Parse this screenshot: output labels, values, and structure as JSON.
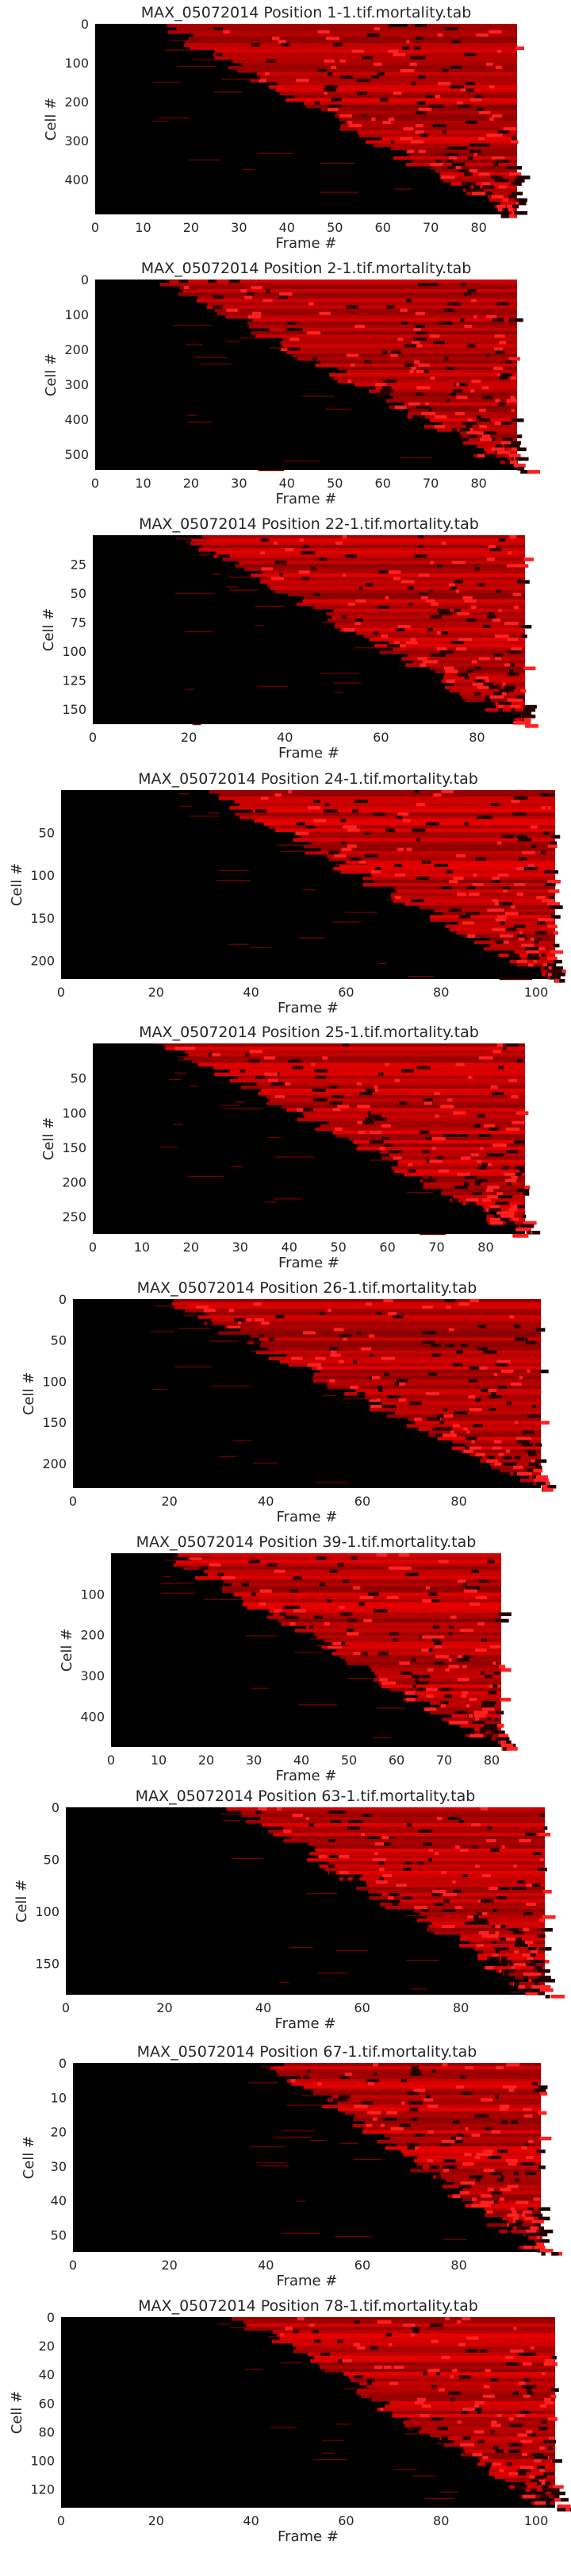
{
  "colors": {
    "background": "#000000",
    "signal": "#ff0000",
    "text": "#262626"
  },
  "chart_data": [
    {
      "type": "heatmap",
      "title": "MAX_05072014 Position 1-1.tif.mortality.tab",
      "xlabel": "Frame #",
      "ylabel": "Cell #",
      "xlim": [
        0,
        88
      ],
      "ylim": [
        0,
        490
      ],
      "x_ticks": [
        0,
        10,
        20,
        30,
        40,
        50,
        60,
        70,
        80
      ],
      "y_ticks": [
        0,
        100,
        200,
        300,
        400
      ],
      "onset_start_frame": 14,
      "onset_end_frame": 87,
      "description": "Cells sorted by death onset; red marks dead/signal frames"
    },
    {
      "type": "heatmap",
      "title": "MAX_05072014 Position 2-1.tif.mortality.tab",
      "xlabel": "Frame #",
      "ylabel": "Cell #",
      "xlim": [
        0,
        88
      ],
      "ylim": [
        0,
        545
      ],
      "x_ticks": [
        0,
        10,
        20,
        30,
        40,
        50,
        60,
        70,
        80
      ],
      "y_ticks": [
        0,
        100,
        200,
        300,
        400,
        500
      ],
      "onset_start_frame": 15,
      "onset_end_frame": 88,
      "description": "Cells sorted by death onset; red marks dead/signal frames"
    },
    {
      "type": "heatmap",
      "title": "MAX_05072014 Position 22-1.tif.mortality.tab",
      "xlabel": "Frame #",
      "ylabel": "Cell #",
      "xlim": [
        0,
        90
      ],
      "ylim": [
        0,
        163
      ],
      "x_ticks": [
        0,
        20,
        40,
        60,
        80
      ],
      "y_ticks": [
        25,
        50,
        75,
        100,
        125,
        150
      ],
      "onset_start_frame": 20,
      "onset_end_frame": 90,
      "description": "Cells sorted by death onset; red marks dead/signal frames"
    },
    {
      "type": "heatmap",
      "title": "MAX_05072014 Position 24-1.tif.mortality.tab",
      "xlabel": "Frame #",
      "ylabel": "Cell #",
      "xlim": [
        0,
        104
      ],
      "ylim": [
        0,
        222
      ],
      "x_ticks": [
        0,
        20,
        40,
        60,
        80,
        100
      ],
      "y_ticks": [
        50,
        100,
        150,
        200
      ],
      "onset_start_frame": 30,
      "onset_end_frame": 104,
      "description": "Cells sorted by death onset; red marks dead/signal frames"
    },
    {
      "type": "heatmap",
      "title": "MAX_05072014 Position 25-1.tif.mortality.tab",
      "xlabel": "Frame #",
      "ylabel": "Cell #",
      "xlim": [
        0,
        88
      ],
      "ylim": [
        0,
        275
      ],
      "x_ticks": [
        0,
        10,
        20,
        30,
        40,
        50,
        60,
        70,
        80
      ],
      "y_ticks": [
        50,
        100,
        150,
        200,
        250
      ],
      "onset_start_frame": 16,
      "onset_end_frame": 88,
      "description": "Cells sorted by death onset; red marks dead/signal frames"
    },
    {
      "type": "heatmap",
      "title": "MAX_05072014 Position 26-1.tif.mortality.tab",
      "xlabel": "Frame #",
      "ylabel": "Cell #",
      "xlim": [
        0,
        97
      ],
      "ylim": [
        0,
        230
      ],
      "x_ticks": [
        0,
        20,
        40,
        60,
        80
      ],
      "y_ticks": [
        0,
        50,
        100,
        150,
        200
      ],
      "onset_start_frame": 20,
      "onset_end_frame": 97,
      "description": "Cells sorted by death onset; red marks dead/signal frames"
    },
    {
      "type": "heatmap",
      "title": "MAX_05072014 Position 39-1.tif.mortality.tab",
      "xlabel": "Frame #",
      "ylabel": "Cell #",
      "xlim": [
        0,
        82
      ],
      "ylim": [
        0,
        475
      ],
      "x_ticks": [
        0,
        10,
        20,
        30,
        40,
        50,
        60,
        70,
        80
      ],
      "y_ticks": [
        100,
        200,
        300,
        400
      ],
      "onset_start_frame": 12,
      "onset_end_frame": 82,
      "description": "Cells sorted by death onset; red marks dead/signal frames"
    },
    {
      "type": "heatmap",
      "title": "MAX_05072014 Position 63-1.tif.mortality.tab",
      "xlabel": "Frame #",
      "ylabel": "Cell #",
      "xlim": [
        0,
        97
      ],
      "ylim": [
        0,
        180
      ],
      "x_ticks": [
        0,
        20,
        40,
        60,
        80
      ],
      "y_ticks": [
        0,
        50,
        100,
        150
      ],
      "onset_start_frame": 35,
      "onset_end_frame": 97,
      "description": "Cells sorted by death onset; red marks dead/signal frames"
    },
    {
      "type": "heatmap",
      "title": "MAX_05072014 Position 67-1.tif.mortality.tab",
      "xlabel": "Frame #",
      "ylabel": "Cell #",
      "xlim": [
        0,
        97
      ],
      "ylim": [
        0,
        55
      ],
      "x_ticks": [
        0,
        20,
        40,
        60,
        80
      ],
      "y_ticks": [
        0,
        10,
        20,
        30,
        40,
        50
      ],
      "onset_start_frame": 42,
      "onset_end_frame": 97,
      "description": "Cells sorted by death onset; red marks dead/signal frames"
    },
    {
      "type": "heatmap",
      "title": "MAX_05072014 Position 78-1.tif.mortality.tab",
      "xlabel": "Frame #",
      "ylabel": "Cell #",
      "xlim": [
        0,
        104
      ],
      "ylim": [
        0,
        133
      ],
      "x_ticks": [
        0,
        20,
        40,
        60,
        80,
        100
      ],
      "y_ticks": [
        0,
        20,
        40,
        60,
        80,
        100,
        120
      ],
      "onset_start_frame": 38,
      "onset_end_frame": 104,
      "description": "Cells sorted by death onset; red marks dead/signal frames"
    }
  ]
}
